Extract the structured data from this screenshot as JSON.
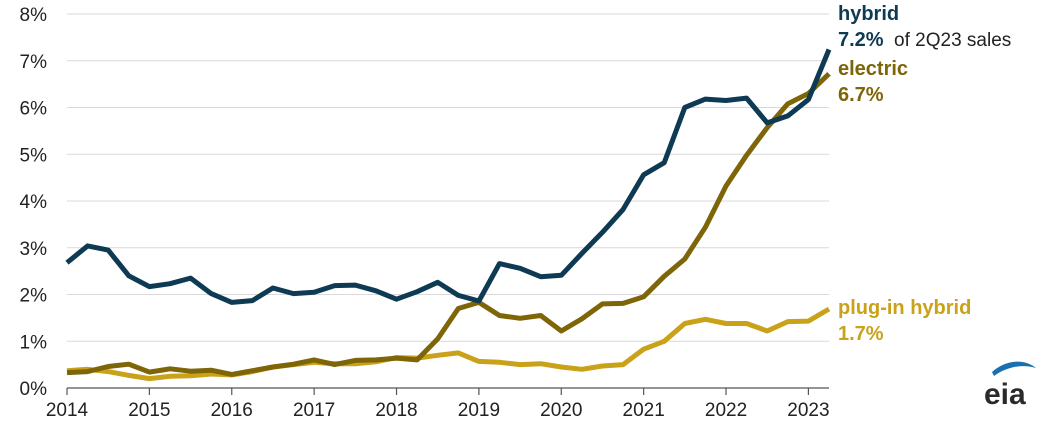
{
  "chart_data": {
    "type": "line",
    "title": "",
    "xlabel": "",
    "ylabel": "",
    "ylim": [
      0,
      8
    ],
    "y_ticks": [
      0,
      1,
      2,
      3,
      4,
      5,
      6,
      7,
      8
    ],
    "y_tick_labels": [
      "0%",
      "1%",
      "2%",
      "3%",
      "4%",
      "5%",
      "6%",
      "7%",
      "8%"
    ],
    "xlim": [
      2014.0,
      2023.25
    ],
    "x_ticks": [
      2014,
      2015,
      2016,
      2017,
      2018,
      2019,
      2020,
      2021,
      2022,
      2023
    ],
    "x_tick_labels": [
      "2014",
      "2015",
      "2016",
      "2017",
      "2018",
      "2019",
      "2020",
      "2021",
      "2022",
      "2023"
    ],
    "grid": "horizontal",
    "x": [
      "1Q14",
      "2Q14",
      "3Q14",
      "4Q14",
      "1Q15",
      "2Q15",
      "3Q15",
      "4Q15",
      "1Q16",
      "2Q16",
      "3Q16",
      "4Q16",
      "1Q17",
      "2Q17",
      "3Q17",
      "4Q17",
      "1Q18",
      "2Q18",
      "3Q18",
      "4Q18",
      "1Q19",
      "2Q19",
      "3Q19",
      "4Q19",
      "1Q20",
      "2Q20",
      "3Q20",
      "4Q20",
      "1Q21",
      "2Q21",
      "3Q21",
      "4Q21",
      "1Q22",
      "2Q22",
      "3Q22",
      "4Q22",
      "1Q23",
      "2Q23"
    ],
    "series": [
      {
        "name": "hybrid",
        "color": "#0e3a53",
        "values": [
          2.68,
          3.04,
          2.95,
          2.4,
          2.17,
          2.23,
          2.35,
          2.02,
          1.83,
          1.87,
          2.14,
          2.02,
          2.05,
          2.19,
          2.2,
          2.08,
          1.9,
          2.06,
          2.26,
          1.98,
          1.86,
          2.66,
          2.56,
          2.38,
          2.41,
          2.88,
          3.33,
          3.82,
          4.56,
          4.82,
          6.0,
          6.18,
          6.15,
          6.2,
          5.67,
          5.82,
          6.17,
          7.24
        ]
      },
      {
        "name": "electric",
        "color": "#7d6508",
        "values": [
          0.33,
          0.35,
          0.46,
          0.51,
          0.34,
          0.41,
          0.36,
          0.38,
          0.29,
          0.37,
          0.45,
          0.51,
          0.6,
          0.5,
          0.59,
          0.6,
          0.64,
          0.6,
          1.05,
          1.7,
          1.83,
          1.55,
          1.49,
          1.55,
          1.22,
          1.48,
          1.8,
          1.81,
          1.95,
          2.39,
          2.76,
          3.44,
          4.32,
          4.98,
          5.57,
          6.08,
          6.3,
          6.72
        ]
      },
      {
        "name": "plug-in hybrid",
        "color": "#c9a21a",
        "values": [
          0.37,
          0.4,
          0.35,
          0.27,
          0.2,
          0.25,
          0.26,
          0.3,
          0.28,
          0.35,
          0.45,
          0.5,
          0.55,
          0.52,
          0.52,
          0.56,
          0.65,
          0.64,
          0.7,
          0.75,
          0.57,
          0.55,
          0.5,
          0.52,
          0.45,
          0.4,
          0.47,
          0.5,
          0.83,
          1.0,
          1.38,
          1.47,
          1.38,
          1.38,
          1.22,
          1.42,
          1.43,
          1.69
        ]
      }
    ],
    "annotations": [
      {
        "series": "hybrid",
        "name": "hybrid",
        "value": "7.2%",
        "note": "of 2Q23 sales"
      },
      {
        "series": "electric",
        "name": "electric",
        "value": "6.7%"
      },
      {
        "series": "plug-in hybrid",
        "name": "plug-in hybrid",
        "value": "1.7%"
      }
    ]
  },
  "logo": {
    "text": "eia",
    "accent": "#1a6fb0"
  },
  "colors": {
    "grid": "#d9d9d9",
    "axis": "#555555"
  }
}
